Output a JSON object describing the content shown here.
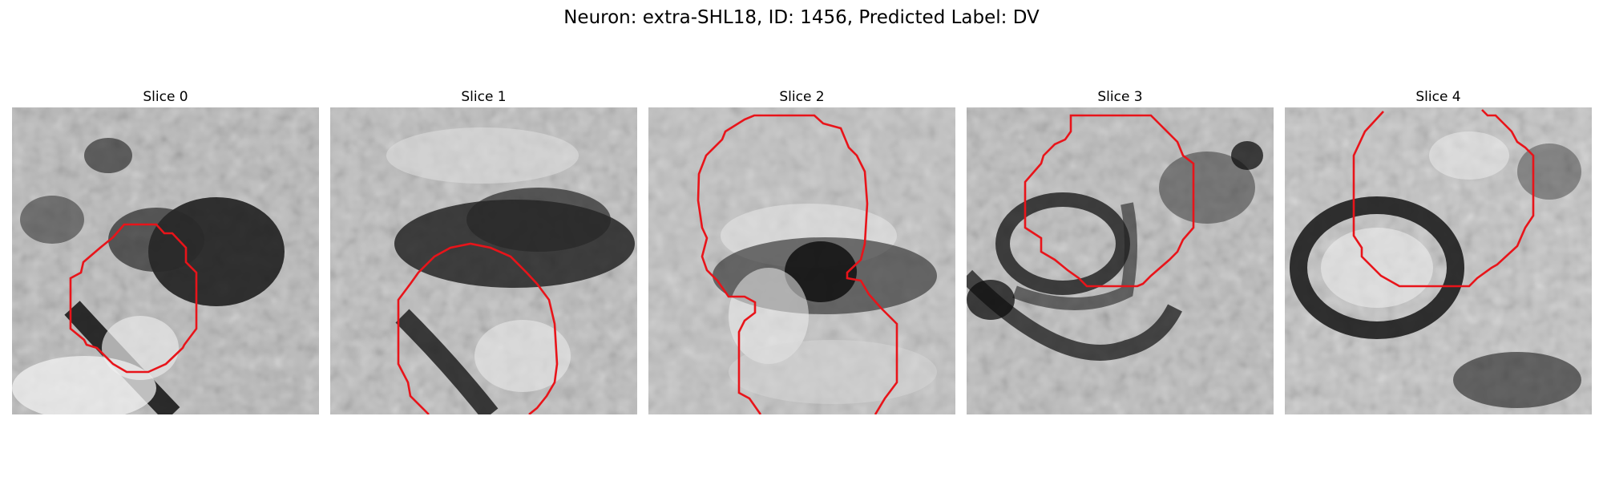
{
  "figure": {
    "title": "Neuron: extra-SHL18, ID: 1456, Predicted Label: DV"
  },
  "slices": [
    {
      "title": "Slice 0"
    },
    {
      "title": "Slice 1"
    },
    {
      "title": "Slice 2"
    },
    {
      "title": "Slice 3"
    },
    {
      "title": "Slice 4"
    }
  ],
  "colors": {
    "contour": "#e8141a",
    "background": "#ffffff"
  }
}
